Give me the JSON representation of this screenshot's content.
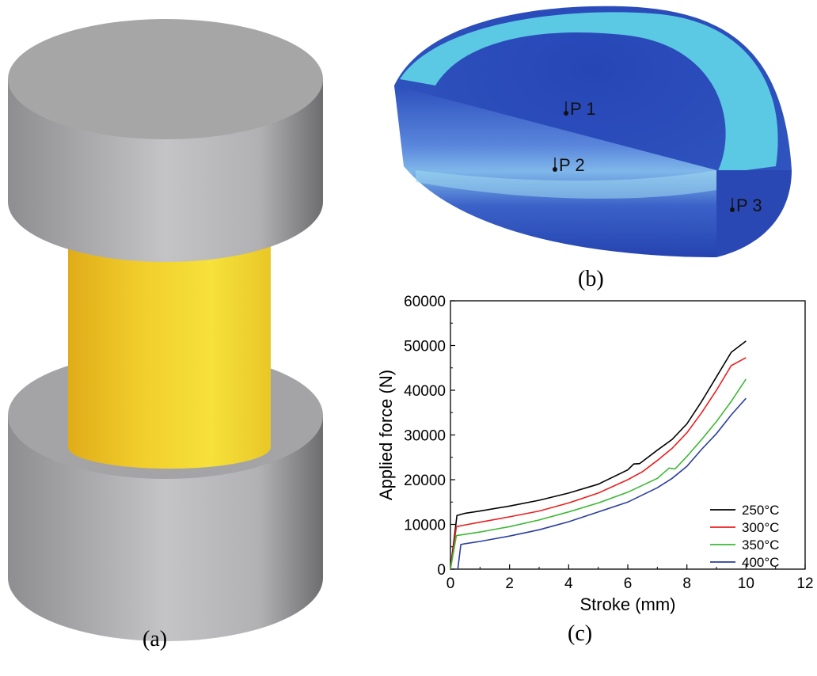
{
  "captions": {
    "a": "(a)",
    "b": "(b)",
    "c": "(c)"
  },
  "probes": [
    "P 1",
    "P 2",
    "P 3"
  ],
  "colors": {
    "die_top": "#a6a6a6",
    "die_side": "#b9b9bb",
    "billet": "#f2d12e",
    "contour_dark": "#1f3aa8",
    "contour_mid": "#4d74d6",
    "contour_light": "#5fd0e6"
  },
  "chart_data": {
    "type": "line",
    "xlabel": "Stroke (mm)",
    "ylabel": "Applied force (N)",
    "xlim": [
      0,
      12
    ],
    "ylim": [
      0,
      60000
    ],
    "xticks": [
      0,
      2,
      4,
      6,
      8,
      10,
      12
    ],
    "yticks": [
      0,
      10000,
      20000,
      30000,
      40000,
      50000,
      60000
    ],
    "grid": false,
    "legend_position": "bottom-right",
    "series": [
      {
        "name": "250°C",
        "color": "#000000",
        "points": [
          [
            0,
            0
          ],
          [
            0.22,
            12000
          ],
          [
            0.5,
            12500
          ],
          [
            1,
            13000
          ],
          [
            2,
            14100
          ],
          [
            3,
            15400
          ],
          [
            4,
            17000
          ],
          [
            5,
            19000
          ],
          [
            6,
            22200
          ],
          [
            6.2,
            23500
          ],
          [
            6.4,
            23600
          ],
          [
            7,
            26600
          ],
          [
            7.5,
            29000
          ],
          [
            8,
            32500
          ],
          [
            8.5,
            37500
          ],
          [
            9,
            43000
          ],
          [
            9.5,
            48500
          ],
          [
            10,
            51000
          ]
        ]
      },
      {
        "name": "300°C",
        "color": "#e8201e",
        "points": [
          [
            0,
            0
          ],
          [
            0.2,
            9500
          ],
          [
            0.5,
            9900
          ],
          [
            1,
            10500
          ],
          [
            2,
            11700
          ],
          [
            3,
            13000
          ],
          [
            4,
            14800
          ],
          [
            5,
            17000
          ],
          [
            6,
            20000
          ],
          [
            6.5,
            21800
          ],
          [
            7,
            24300
          ],
          [
            7.5,
            27000
          ],
          [
            8,
            30500
          ],
          [
            8.5,
            35000
          ],
          [
            9,
            40000
          ],
          [
            9.5,
            45500
          ],
          [
            10,
            47300
          ]
        ]
      },
      {
        "name": "350°C",
        "color": "#3db835",
        "points": [
          [
            0,
            0
          ],
          [
            0.2,
            7500
          ],
          [
            0.5,
            7800
          ],
          [
            1,
            8300
          ],
          [
            2,
            9500
          ],
          [
            3,
            11000
          ],
          [
            4,
            12800
          ],
          [
            5,
            14800
          ],
          [
            6,
            17200
          ],
          [
            7,
            20300
          ],
          [
            7.4,
            22600
          ],
          [
            7.6,
            22400
          ],
          [
            8,
            25200
          ],
          [
            8.5,
            29000
          ],
          [
            9,
            33000
          ],
          [
            9.5,
            37500
          ],
          [
            10,
            42500
          ]
        ]
      },
      {
        "name": "400°C",
        "color": "#2a3f9d",
        "points": [
          [
            0.25,
            0
          ],
          [
            0.35,
            5500
          ],
          [
            0.5,
            5700
          ],
          [
            1,
            6200
          ],
          [
            2,
            7400
          ],
          [
            3,
            8800
          ],
          [
            3.5,
            9700
          ],
          [
            4,
            10600
          ],
          [
            5,
            12800
          ],
          [
            6,
            15000
          ],
          [
            7,
            18200
          ],
          [
            7.5,
            20300
          ],
          [
            8,
            23000
          ],
          [
            8.5,
            26800
          ],
          [
            9,
            30300
          ],
          [
            9.5,
            34500
          ],
          [
            10,
            38200
          ]
        ]
      }
    ]
  }
}
